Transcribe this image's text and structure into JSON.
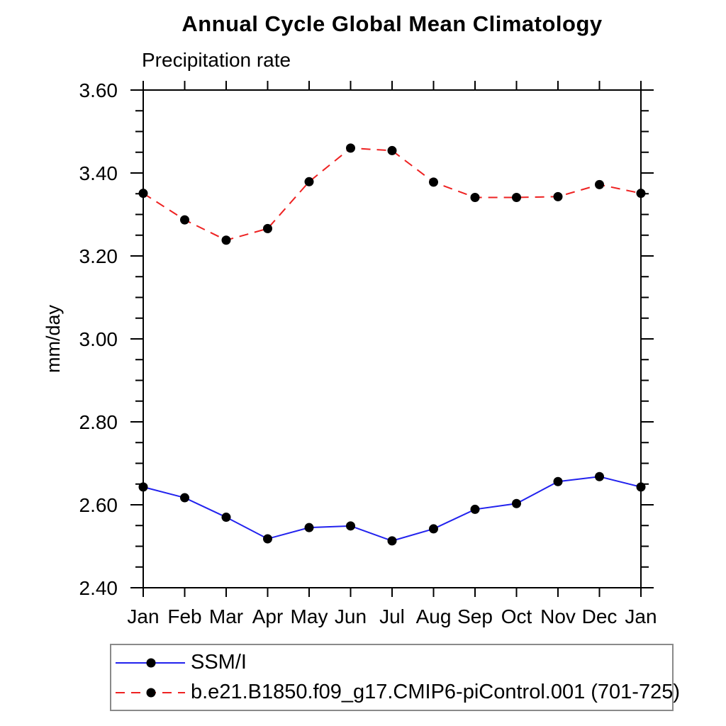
{
  "page": {
    "background_color": "#ffffff",
    "text_color": "#000000"
  },
  "chart_data": {
    "type": "line",
    "title": "Annual Cycle Global Mean Climatology",
    "subtitle": "Precipitation rate",
    "xlabel": "",
    "ylabel": "mm/day",
    "categories": [
      "Jan",
      "Feb",
      "Mar",
      "Apr",
      "May",
      "Jun",
      "Jul",
      "Aug",
      "Sep",
      "Oct",
      "Nov",
      "Dec",
      "Jan"
    ],
    "ylim": [
      2.4,
      3.6
    ],
    "ytick_major_interval": 0.2,
    "ytick_minor_interval": 0.05,
    "ytick_labels": [
      "2.40",
      "2.60",
      "2.80",
      "3.00",
      "3.20",
      "3.40",
      "3.60"
    ],
    "grid": false,
    "frame_color": "#000000",
    "legend_position": "bottom",
    "series": [
      {
        "name": "SSM/I",
        "color": "#2222ee",
        "line_style": "solid",
        "marker": "filled-circle",
        "marker_color": "#000000",
        "values": [
          2.643,
          2.617,
          2.57,
          2.518,
          2.545,
          2.549,
          2.513,
          2.542,
          2.589,
          2.603,
          2.656,
          2.668,
          2.643
        ]
      },
      {
        "name": "b.e21.B1850.f09_g17.CMIP6-piControl.001 (701-725)",
        "color": "#ee2222",
        "line_style": "dashed",
        "marker": "filled-circle",
        "marker_color": "#000000",
        "values": [
          3.351,
          3.287,
          3.238,
          3.266,
          3.379,
          3.46,
          3.454,
          3.378,
          3.341,
          3.341,
          3.343,
          3.372,
          3.351
        ]
      }
    ]
  }
}
